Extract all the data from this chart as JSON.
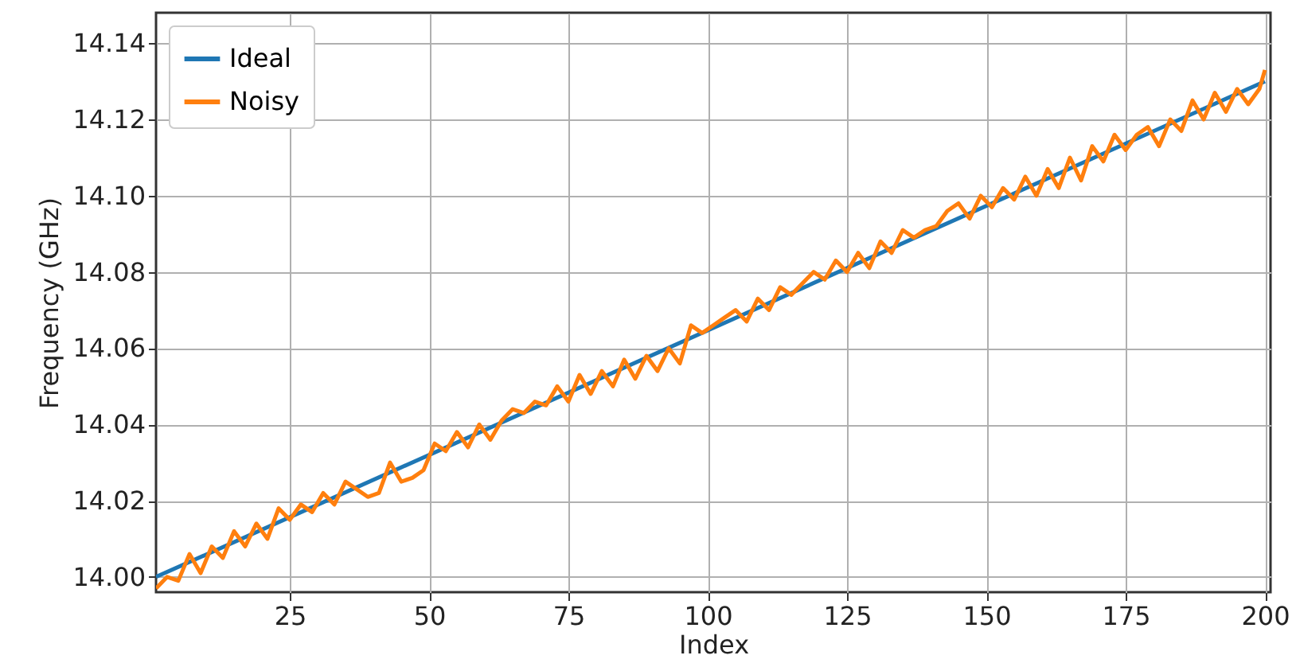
{
  "chart_data": {
    "type": "line",
    "xlabel": "Index",
    "ylabel": "Frequency (GHz)",
    "xlim": [
      1,
      201
    ],
    "ylim": [
      13.996,
      14.148
    ],
    "xticks": [
      25,
      50,
      75,
      100,
      125,
      150,
      175,
      200
    ],
    "yticks": [
      {
        "value": 14,
        "label": "14.00"
      },
      {
        "value": 14.02,
        "label": "14.02"
      },
      {
        "value": 14.04,
        "label": "14.04"
      },
      {
        "value": 14.06,
        "label": "14.06"
      },
      {
        "value": 14.08,
        "label": "14.08"
      },
      {
        "value": 14.1,
        "label": "14.10"
      },
      {
        "value": 14.12,
        "label": "14.12"
      },
      {
        "value": 14.14,
        "label": "14.14"
      }
    ],
    "grid": true,
    "legend": "top left",
    "line_style": "solid",
    "series": [
      {
        "name": "Ideal",
        "color": "#1f77b4",
        "x": [
          1,
          200
        ],
        "values": [
          14.0,
          14.13
        ]
      },
      {
        "name": "Noisy",
        "color": "#ff7f0e",
        "x": [
          1,
          3,
          5,
          7,
          9,
          11,
          13,
          15,
          17,
          19,
          21,
          23,
          25,
          27,
          29,
          31,
          33,
          35,
          37,
          39,
          41,
          43,
          45,
          47,
          49,
          51,
          53,
          55,
          57,
          59,
          61,
          63,
          65,
          67,
          69,
          71,
          73,
          75,
          77,
          79,
          81,
          83,
          85,
          87,
          89,
          91,
          93,
          95,
          97,
          99,
          101,
          103,
          105,
          107,
          109,
          111,
          113,
          115,
          117,
          119,
          121,
          123,
          125,
          127,
          129,
          131,
          133,
          135,
          137,
          139,
          141,
          143,
          145,
          147,
          149,
          151,
          153,
          155,
          157,
          159,
          161,
          163,
          165,
          167,
          169,
          171,
          173,
          175,
          177,
          179,
          181,
          183,
          185,
          187,
          189,
          191,
          193,
          195,
          197,
          199,
          200
        ],
        "values": [
          13.997,
          14.0,
          13.999,
          14.006,
          14.001,
          14.008,
          14.005,
          14.012,
          14.008,
          14.014,
          14.01,
          14.018,
          14.015,
          14.019,
          14.017,
          14.022,
          14.019,
          14.025,
          14.023,
          14.021,
          14.022,
          14.03,
          14.025,
          14.026,
          14.028,
          14.035,
          14.033,
          14.038,
          14.034,
          14.04,
          14.036,
          14.041,
          14.044,
          14.043,
          14.046,
          14.045,
          14.05,
          14.046,
          14.053,
          14.048,
          14.054,
          14.05,
          14.057,
          14.052,
          14.058,
          14.054,
          14.06,
          14.056,
          14.066,
          14.064,
          14.066,
          14.068,
          14.07,
          14.067,
          14.073,
          14.07,
          14.076,
          14.074,
          14.077,
          14.08,
          14.078,
          14.083,
          14.08,
          14.085,
          14.081,
          14.088,
          14.085,
          14.091,
          14.089,
          14.091,
          14.092,
          14.096,
          14.098,
          14.094,
          14.1,
          14.097,
          14.102,
          14.099,
          14.105,
          14.1,
          14.107,
          14.102,
          14.11,
          14.104,
          14.113,
          14.109,
          14.116,
          14.112,
          14.116,
          14.118,
          14.113,
          14.12,
          14.117,
          14.125,
          14.12,
          14.127,
          14.122,
          14.128,
          14.124,
          14.128,
          14.133
        ]
      }
    ]
  }
}
